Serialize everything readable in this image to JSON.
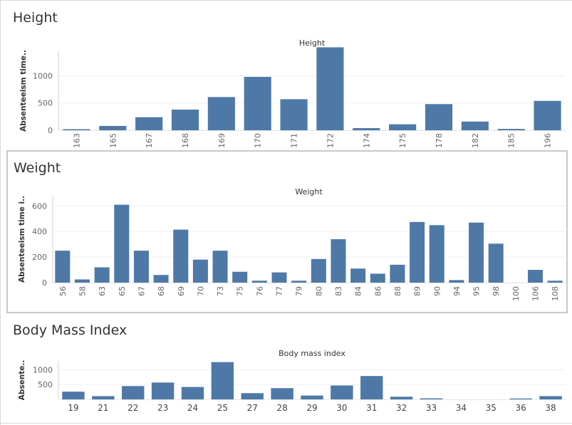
{
  "colors": {
    "bar": "#4e79a7",
    "grid": "#efefef",
    "axis": "#cfcfcf",
    "text": "#666666"
  },
  "chart_data": [
    {
      "type": "bar",
      "sheet_title": "Height",
      "title": "Height",
      "ylabel": "Absenteeism time..",
      "xlabel": "",
      "ylim": [
        0,
        1450
      ],
      "yticks": [
        0,
        500,
        1000
      ],
      "categories": [
        "163",
        "165",
        "167",
        "168",
        "169",
        "170",
        "171",
        "172",
        "174",
        "175",
        "178",
        "182",
        "185",
        "196"
      ],
      "values": [
        20,
        80,
        240,
        380,
        610,
        980,
        570,
        1550,
        40,
        110,
        480,
        160,
        25,
        540
      ]
    },
    {
      "type": "bar",
      "sheet_title": "Weight",
      "title": "Weight",
      "ylabel": "Absenteeism time i..",
      "xlabel": "",
      "ylim": [
        0,
        680
      ],
      "yticks": [
        0,
        200,
        400,
        600
      ],
      "categories": [
        "56",
        "58",
        "63",
        "65",
        "67",
        "68",
        "69",
        "70",
        "73",
        "75",
        "76",
        "77",
        "79",
        "80",
        "83",
        "84",
        "86",
        "88",
        "89",
        "90",
        "94",
        "95",
        "98",
        "100",
        "106",
        "108"
      ],
      "values": [
        250,
        25,
        120,
        610,
        250,
        60,
        415,
        180,
        250,
        85,
        15,
        80,
        15,
        185,
        340,
        110,
        70,
        140,
        475,
        450,
        20,
        470,
        305,
        0,
        100,
        15
      ]
    },
    {
      "type": "bar",
      "sheet_title": "Body Mass Index",
      "title": "Body mass index",
      "ylabel": "Absente..",
      "xlabel": "",
      "ylim": [
        0,
        1300
      ],
      "yticks": [
        500,
        1000
      ],
      "categories": [
        "19",
        "21",
        "22",
        "23",
        "24",
        "25",
        "27",
        "28",
        "29",
        "30",
        "31",
        "32",
        "33",
        "34",
        "35",
        "36",
        "38"
      ],
      "values": [
        260,
        110,
        450,
        570,
        420,
        1260,
        210,
        380,
        130,
        470,
        790,
        90,
        35,
        0,
        0,
        30,
        110
      ]
    }
  ]
}
